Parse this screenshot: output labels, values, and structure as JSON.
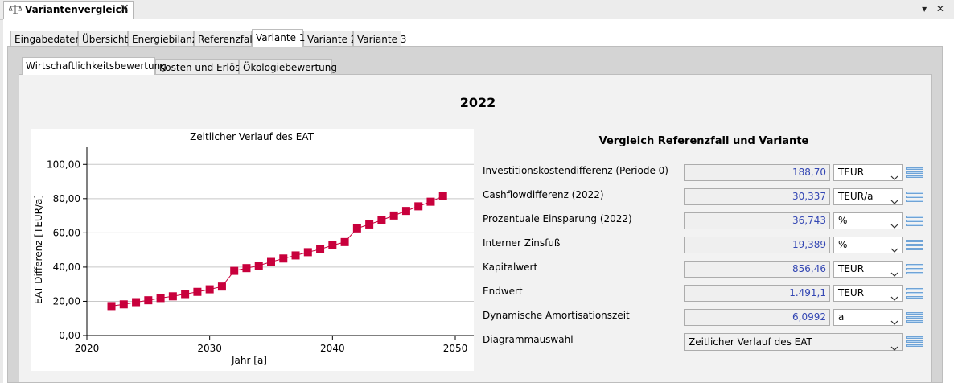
{
  "window": {
    "tab_title": "Variantenvergleich",
    "close_glyph": "✕",
    "controls": "▾ ✕"
  },
  "main_tabs": [
    "Eingabedaten",
    "Übersicht",
    "Energiebilanz",
    "Referenzfall",
    "Variante 1",
    "Variante 2",
    "Variante 3"
  ],
  "main_tabs_active": 4,
  "sub_tabs": [
    "Wirtschaftlichkeitsbewertung",
    "Kosten und Erlöse",
    "Ökologiebewertung"
  ],
  "sub_tabs_active": 0,
  "year": "2022",
  "comparison": {
    "title": "Vergleich Referenzfall und Variante",
    "rows": [
      {
        "label": "Investitionskostendifferenz (Periode 0)",
        "value": "188,70",
        "unit": "TEUR"
      },
      {
        "label": "Cashflowdifferenz (2022)",
        "value": "30,337",
        "unit": "TEUR/a"
      },
      {
        "label": "Prozentuale Einsparung (2022)",
        "value": "36,743",
        "unit": "%"
      },
      {
        "label": "Interner Zinsfuß",
        "value": "19,389",
        "unit": "%"
      },
      {
        "label": "Kapitalwert",
        "value": "856,46",
        "unit": "TEUR"
      },
      {
        "label": "Endwert",
        "value": "1.491,1",
        "unit": "TEUR"
      },
      {
        "label": "Dynamische Amortisationszeit",
        "value": "6,0992",
        "unit": "a"
      }
    ],
    "diagram_label": "Diagrammauswahl",
    "diagram_value": "Zeitlicher Verlauf des EAT"
  },
  "icons": {
    "window": "scale-icon",
    "dropdown": "chevron-down-icon",
    "row_menu": "hamburger-menu-icon"
  },
  "colors": {
    "series": "#c8003c",
    "value_text": "#3346b3"
  },
  "chart_data": {
    "type": "line",
    "title": "Zeitlicher Verlauf des EAT",
    "xlabel": "Jahr [a]",
    "ylabel": "EAT-Differenz [TEUR/a]",
    "xlim": [
      2020,
      2050
    ],
    "ylim": [
      0,
      110
    ],
    "xticks": [
      "2020",
      "2030",
      "2040",
      "2050"
    ],
    "yticks": [
      "0,00",
      "20,00",
      "40,00",
      "60,00",
      "80,00",
      "100,00"
    ],
    "grid": true,
    "series": [
      {
        "x": [
          2022,
          2023,
          2024,
          2025,
          2026,
          2027,
          2028,
          2029,
          2030,
          2031,
          2032,
          2033,
          2034,
          2035,
          2036,
          2037,
          2038,
          2039,
          2040,
          2041,
          2042,
          2043,
          2044,
          2045,
          2046,
          2047,
          2048,
          2049
        ],
        "y": [
          17.2,
          18.2,
          19.5,
          20.6,
          21.9,
          22.9,
          24.2,
          25.5,
          27.0,
          28.6,
          37.8,
          39.4,
          40.9,
          43.0,
          45.0,
          46.8,
          48.7,
          50.4,
          52.7,
          54.6,
          62.6,
          64.9,
          67.4,
          70.1,
          72.8,
          75.5,
          78.2,
          81.4
        ]
      }
    ]
  }
}
